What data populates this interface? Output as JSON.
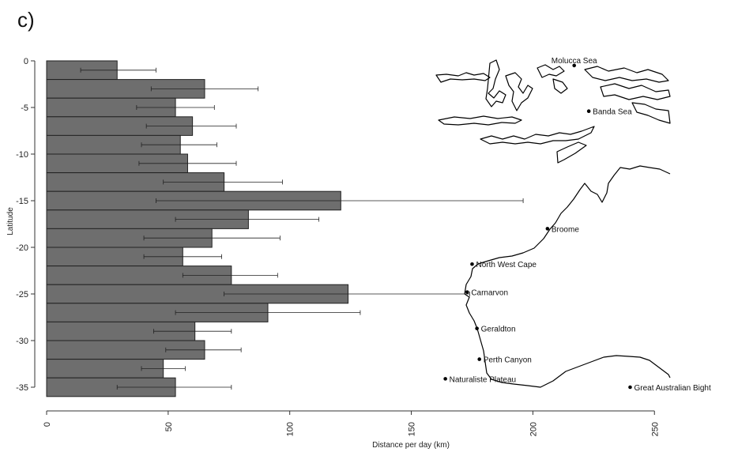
{
  "panel_label": "c)",
  "chart_data": {
    "type": "bar",
    "orientation": "horizontal",
    "xlabel": "Distance per day (km)",
    "ylabel": "Latitude",
    "xlim": [
      0,
      285
    ],
    "ylim": [
      -36,
      0
    ],
    "xticks": [
      "0",
      "50",
      "100",
      "150",
      "200",
      "250"
    ],
    "yticks": [
      "0",
      "-5",
      "-10",
      "-15",
      "-20",
      "-25",
      "-30",
      "-35"
    ],
    "bar_color": "#6e6e6e",
    "bars": [
      {
        "lat_top": 0,
        "lat_bottom": -2,
        "value": 29,
        "err_low": 14,
        "err_high": 45
      },
      {
        "lat_top": -2,
        "lat_bottom": -4,
        "value": 65,
        "err_low": 43,
        "err_high": 87
      },
      {
        "lat_top": -4,
        "lat_bottom": -6,
        "value": 53,
        "err_low": 37,
        "err_high": 69
      },
      {
        "lat_top": -6,
        "lat_bottom": -8,
        "value": 60,
        "err_low": 41,
        "err_high": 78
      },
      {
        "lat_top": -8,
        "lat_bottom": -10,
        "value": 55,
        "err_low": 39,
        "err_high": 70
      },
      {
        "lat_top": -10,
        "lat_bottom": -12,
        "value": 58,
        "err_low": 38,
        "err_high": 78
      },
      {
        "lat_top": -12,
        "lat_bottom": -14,
        "value": 73,
        "err_low": 48,
        "err_high": 97
      },
      {
        "lat_top": -14,
        "lat_bottom": -16,
        "value": 121,
        "err_low": 45,
        "err_high": 196
      },
      {
        "lat_top": -16,
        "lat_bottom": -18,
        "value": 83,
        "err_low": 53,
        "err_high": 112
      },
      {
        "lat_top": -18,
        "lat_bottom": -20,
        "value": 68,
        "err_low": 40,
        "err_high": 96
      },
      {
        "lat_top": -20,
        "lat_bottom": -22,
        "value": 56,
        "err_low": 40,
        "err_high": 72
      },
      {
        "lat_top": -22,
        "lat_bottom": -24,
        "value": 76,
        "err_low": 56,
        "err_high": 95
      },
      {
        "lat_top": -24,
        "lat_bottom": -26,
        "value": 124,
        "err_low": 73,
        "err_high": 174
      },
      {
        "lat_top": -26,
        "lat_bottom": -28,
        "value": 91,
        "err_low": 53,
        "err_high": 129
      },
      {
        "lat_top": -28,
        "lat_bottom": -30,
        "value": 61,
        "err_low": 44,
        "err_high": 76
      },
      {
        "lat_top": -30,
        "lat_bottom": -32,
        "value": 65,
        "err_low": 49,
        "err_high": 80
      },
      {
        "lat_top": -32,
        "lat_bottom": -34,
        "value": 48,
        "err_low": 39,
        "err_high": 57
      },
      {
        "lat_top": -34,
        "lat_bottom": -36,
        "value": 53,
        "err_low": 29,
        "err_high": 76
      }
    ],
    "map_annotations": [
      {
        "label": "Molucca Sea",
        "x": 217,
        "y": -0.5,
        "dot": "after",
        "label_side": "above"
      },
      {
        "label": "Banda Sea",
        "x": 223,
        "y": -5.4,
        "label_side": "right"
      },
      {
        "label": "Broome",
        "x": 206,
        "y": -18,
        "label_side": "right"
      },
      {
        "label": "North West Cape",
        "x": 175,
        "y": -21.8,
        "label_side": "right"
      },
      {
        "label": "Carnarvon",
        "x": 173,
        "y": -24.8,
        "label_side": "right"
      },
      {
        "label": "Geraldton",
        "x": 177,
        "y": -28.7,
        "label_side": "right"
      },
      {
        "label": "Perth Canyon",
        "x": 178,
        "y": -32,
        "label_side": "right"
      },
      {
        "label": "Naturaliste Plateau",
        "x": 164,
        "y": -34.1,
        "label_side": "right"
      },
      {
        "label": "Great Australian Bight",
        "x": 240,
        "y": -35,
        "label_side": "right"
      }
    ]
  }
}
